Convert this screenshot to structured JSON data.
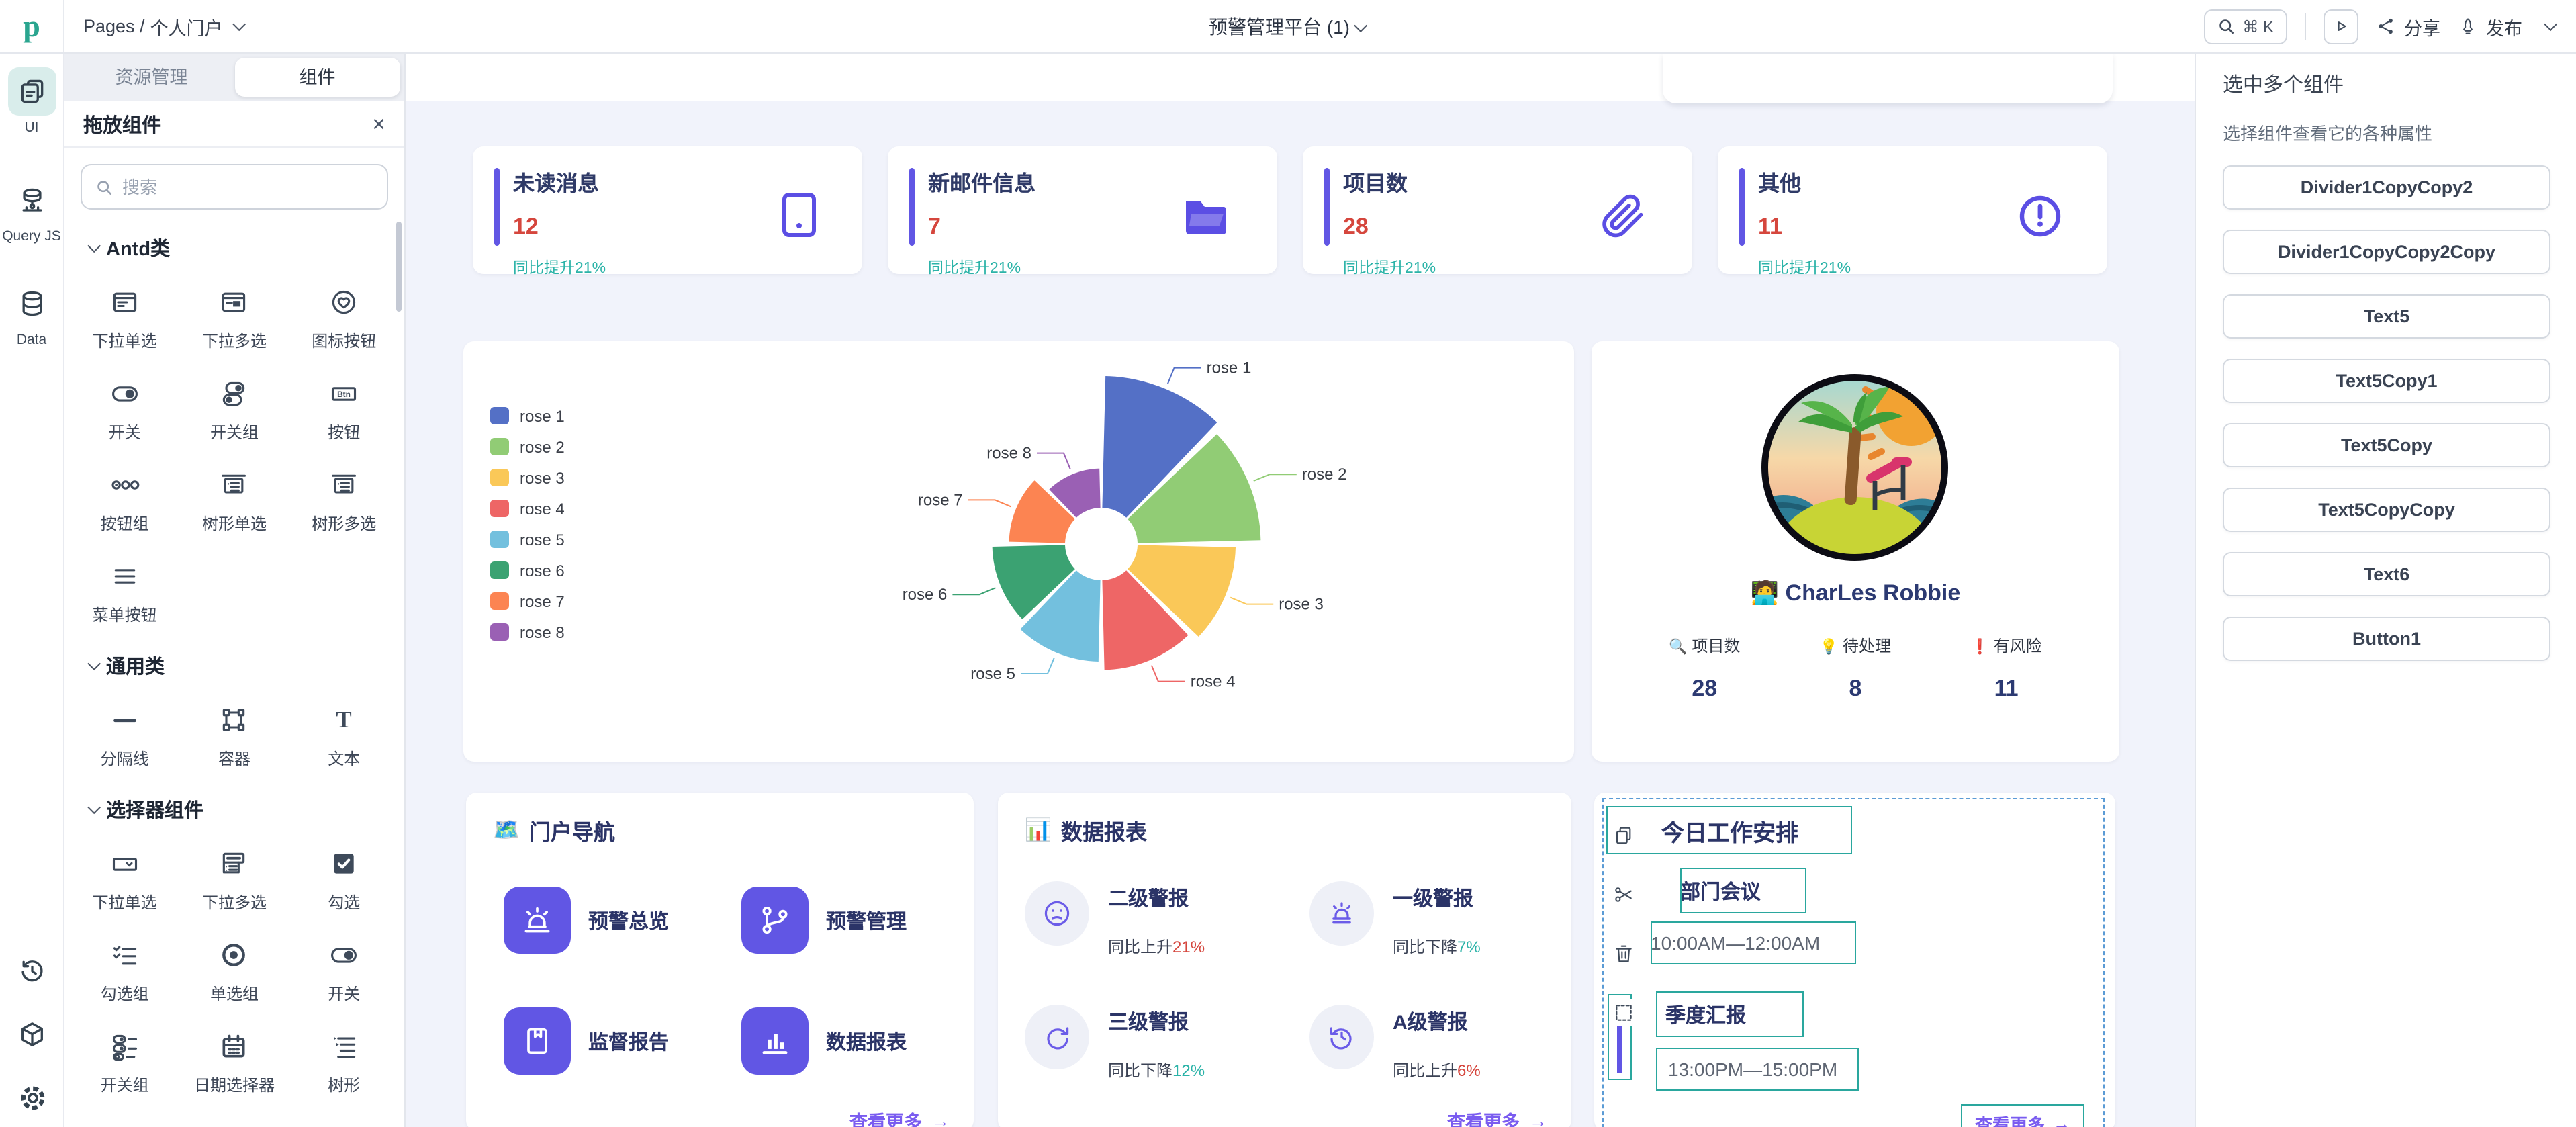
{
  "topbar": {
    "breadcrumb_prefix": "Pages /",
    "breadcrumb_page": "个人门户",
    "app_title": "预警管理平台 (1)",
    "search_shortcut": "⌘ K",
    "share_label": "分享",
    "publish_label": "发布"
  },
  "rail": {
    "items": [
      {
        "label": "UI"
      },
      {
        "label": "Query JS"
      },
      {
        "label": "Data"
      }
    ]
  },
  "palette": {
    "tab_resources": "资源管理",
    "tab_components": "组件",
    "header": "拖放组件",
    "search_placeholder": "搜索",
    "sections": [
      {
        "title": "Antd类",
        "items": [
          "下拉单选",
          "下拉多选",
          "图标按钮",
          "开关",
          "开关组",
          "按钮",
          "按钮组",
          "树形单选",
          "树形多选",
          "菜单按钮"
        ]
      },
      {
        "title": "通用类",
        "items": [
          "分隔线",
          "容器",
          "文本"
        ]
      },
      {
        "title": "选择器组件",
        "items": [
          "下拉单选",
          "下拉多选",
          "勾选",
          "勾选组",
          "单选组",
          "开关",
          "开关组",
          "日期选择器",
          "树形"
        ]
      }
    ]
  },
  "canvas": {
    "stat_cards": [
      {
        "title": "未读消息",
        "value": "12",
        "delta": "同比提升21%"
      },
      {
        "title": "新邮件信息",
        "value": "7",
        "delta": "同比提升21%"
      },
      {
        "title": "项目数",
        "value": "28",
        "delta": "同比提升21%"
      },
      {
        "title": "其他",
        "value": "11",
        "delta": "同比提升21%"
      }
    ],
    "profile": {
      "emoji": "🧑‍💻",
      "name": "CharLes Robbie",
      "stats": [
        {
          "emoji": "🔍",
          "label": "项目数",
          "value": "28"
        },
        {
          "emoji": "💡",
          "label": "待处理",
          "value": "8"
        },
        {
          "emoji": "❗",
          "label": "有风险",
          "value": "11"
        }
      ]
    },
    "portal": {
      "emoji": "🗺️",
      "title": "门户导航",
      "items": [
        "预警总览",
        "预警管理",
        "监督报告",
        "数据报表"
      ],
      "more": "查看更多",
      "more_arrow": "→"
    },
    "report": {
      "emoji": "📊",
      "title": "数据报表",
      "items": [
        {
          "name": "二级警报",
          "delta_prefix": "同比上升",
          "delta_value": "21%",
          "trend": "up"
        },
        {
          "name": "一级警报",
          "delta_prefix": "同比下降",
          "delta_value": "7%",
          "trend": "down"
        },
        {
          "name": "三级警报",
          "delta_prefix": "同比下降",
          "delta_value": "12%",
          "trend": "down"
        },
        {
          "name": "A级警报",
          "delta_prefix": "同比上升",
          "delta_value": "6%",
          "trend": "up"
        }
      ],
      "more": "查看更多",
      "more_arrow": "→"
    },
    "schedule": {
      "title": "今日工作安排",
      "items": [
        {
          "name": "部门会议",
          "time": "10:00AM—12:00AM"
        },
        {
          "name": "季度汇报",
          "time": "13:00PM—15:00PM"
        }
      ],
      "more": "查看更多",
      "more_arrow": "→"
    }
  },
  "chart_data": {
    "type": "pie",
    "subtype": "nightingale_rose",
    "legend_position": "left",
    "series": [
      {
        "name": "rose 1",
        "value": 40
      },
      {
        "name": "rose 2",
        "value": 38
      },
      {
        "name": "rose 3",
        "value": 32
      },
      {
        "name": "rose 4",
        "value": 30
      },
      {
        "name": "rose 5",
        "value": 28
      },
      {
        "name": "rose 6",
        "value": 26
      },
      {
        "name": "rose 7",
        "value": 22
      },
      {
        "name": "rose 8",
        "value": 18
      }
    ],
    "colors": [
      "#5470c6",
      "#91cc75",
      "#fac858",
      "#ee6666",
      "#73c0de",
      "#3ba272",
      "#fc8452",
      "#9a60b4"
    ]
  },
  "inspector": {
    "title": "选中多个组件",
    "subtitle": "选择组件查看它的各种属性",
    "components": [
      "Divider1CopyCopy2",
      "Divider1CopyCopy2Copy",
      "Text5",
      "Text5Copy1",
      "Text5Copy",
      "Text5CopyCopy",
      "Text6",
      "Button1"
    ]
  },
  "colors": {
    "accent_purple": "#6156e4",
    "value_red": "#d5463d",
    "delta_teal": "#2bb3a8",
    "navy": "#2f3a67",
    "link_purple": "#7a5cf0",
    "selection_teal": "#2aa79e",
    "selection_blue": "#5b9bd5"
  }
}
